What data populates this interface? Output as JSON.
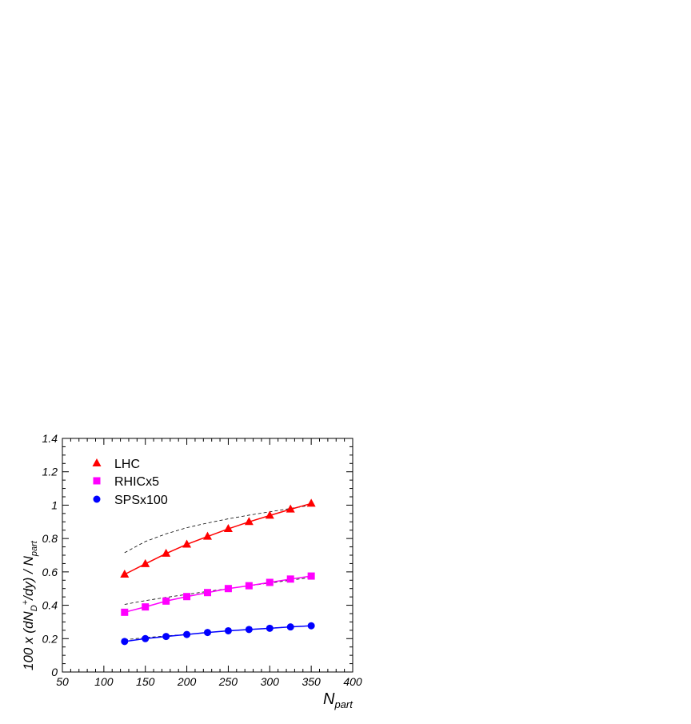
{
  "chart_data": {
    "type": "line",
    "xlabel": "N",
    "xlabel_sub": "part",
    "ylabel_parts": [
      "100 x (dN",
      "D",
      "+",
      "/dy) / N",
      "part"
    ],
    "xlim": [
      50,
      400
    ],
    "ylim": [
      0,
      1.4
    ],
    "xticks": [
      50,
      100,
      150,
      200,
      250,
      300,
      350,
      400
    ],
    "xtick_labels": [
      "50",
      "100",
      "150",
      "200",
      "250",
      "300",
      "350",
      "400"
    ],
    "yticks": [
      0,
      0.2,
      0.4,
      0.6,
      0.8,
      1.0,
      1.2,
      1.4
    ],
    "ytick_labels": [
      "0",
      "0.2",
      "0.4",
      "0.6",
      "0.8",
      "1",
      "1.2",
      "1.4"
    ],
    "legend_position": "top-left",
    "x": [
      125,
      150,
      175,
      200,
      225,
      250,
      275,
      300,
      325,
      350
    ],
    "series": [
      {
        "name": "LHC",
        "marker": "triangle",
        "color": "#ff0000",
        "values": [
          0.585,
          0.648,
          0.71,
          0.765,
          0.812,
          0.858,
          0.9,
          0.938,
          0.975,
          1.01
        ]
      },
      {
        "name": "RHICx5",
        "marker": "square",
        "color": "#ff00ff",
        "values": [
          0.358,
          0.39,
          0.425,
          0.452,
          0.476,
          0.5,
          0.517,
          0.537,
          0.557,
          0.575
        ]
      },
      {
        "name": "SPSx100",
        "marker": "circle",
        "color": "#0000ff",
        "values": [
          0.183,
          0.2,
          0.213,
          0.225,
          0.237,
          0.247,
          0.255,
          0.262,
          0.27,
          0.277
        ]
      }
    ],
    "reference_curves": [
      {
        "style": "dashed",
        "color": "#000000",
        "values": [
          0.715,
          0.782,
          0.828,
          0.865,
          0.893,
          0.918,
          0.94,
          0.96,
          0.98,
          1.0
        ]
      },
      {
        "style": "dashed",
        "color": "#000000",
        "values": [
          0.405,
          0.428,
          0.447,
          0.465,
          0.483,
          0.5,
          0.517,
          0.533,
          0.55,
          0.567
        ]
      },
      {
        "style": "dashed",
        "color": "#000000",
        "values": [
          0.193,
          0.206,
          0.216,
          0.226,
          0.236,
          0.246,
          0.255,
          0.263,
          0.271,
          0.278
        ]
      }
    ]
  }
}
